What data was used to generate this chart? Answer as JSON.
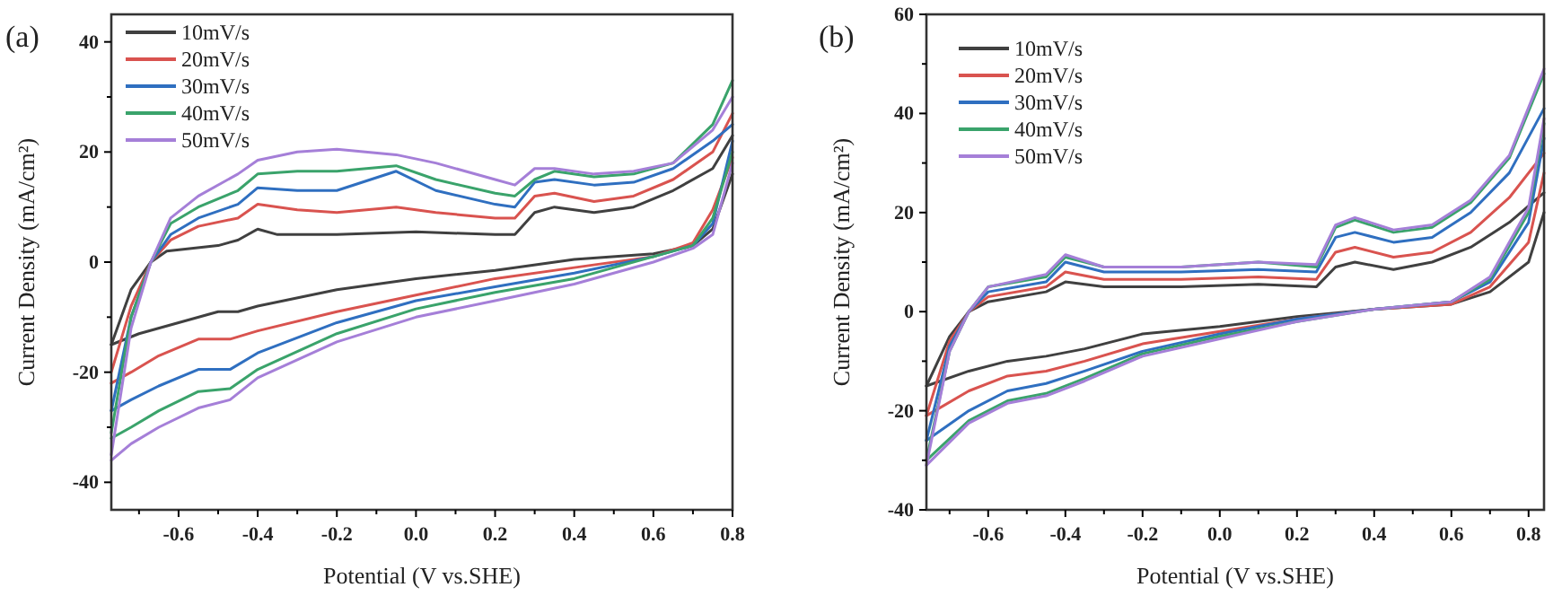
{
  "chart_data": [
    {
      "type": "line",
      "xlabel": "Potential (V vs.SHE)",
      "ylabel": "Current Density (mA/cm²)",
      "annotations": [
        "(a)"
      ],
      "legend": "top left",
      "line_style": "solid",
      "xlim": [
        -0.77,
        0.8
      ],
      "ylim": [
        -45,
        45
      ],
      "xticks": [
        {
          "value": -0.7,
          "label": null
        },
        -0.6,
        {
          "value": -0.5,
          "label": null
        },
        -0.4,
        {
          "value": -0.3,
          "label": null
        },
        -0.2,
        {
          "value": -0.1,
          "label": null
        },
        {
          "value": 0,
          "label": "0.0"
        },
        {
          "value": 0.1,
          "label": null
        },
        0.2,
        {
          "value": 0.3,
          "label": null
        },
        0.4,
        {
          "value": 0.5,
          "label": null
        },
        0.6,
        {
          "value": 0.7,
          "label": null
        },
        0.8
      ],
      "yticks": [
        -40,
        {
          "value": -30,
          "label": null
        },
        -20,
        {
          "value": -10,
          "label": null
        },
        0,
        {
          "value": 10,
          "label": null
        },
        20,
        {
          "value": 30,
          "label": null
        },
        40
      ],
      "series": [
        {
          "name": "10mV/s",
          "color": "#404040",
          "x": [
            -0.77,
            -0.72,
            -0.67,
            -0.63,
            -0.5,
            -0.45,
            -0.4,
            -0.35,
            -0.2,
            0,
            0.2,
            0.25,
            0.3,
            0.35,
            0.45,
            0.55,
            0.65,
            0.75,
            0.8
          ],
          "values": [
            -15,
            -5,
            0,
            2,
            3,
            4,
            6,
            5,
            5,
            5.5,
            5,
            5,
            9,
            10,
            9,
            10,
            13,
            17,
            23
          ]
        },
        {
          "color": "#404040",
          "x": [
            -0.77,
            -0.7,
            -0.6,
            -0.5,
            -0.45,
            -0.4,
            -0.2,
            0,
            0.2,
            0.4,
            0.6,
            0.7,
            0.75,
            0.8
          ],
          "values": [
            -15,
            -13,
            -11,
            -9,
            -9,
            -8,
            -5,
            -3,
            -1.5,
            0.5,
            1.5,
            3,
            6,
            16
          ]
        },
        {
          "name": "20mV/s",
          "color": "#d9534f",
          "x": [
            -0.77,
            -0.72,
            -0.67,
            -0.62,
            -0.55,
            -0.45,
            -0.4,
            -0.3,
            -0.2,
            -0.05,
            0.05,
            0.2,
            0.25,
            0.3,
            0.35,
            0.45,
            0.55,
            0.65,
            0.75,
            0.8
          ],
          "values": [
            -20,
            -8,
            0,
            4,
            6.5,
            8,
            10.5,
            9.5,
            9,
            10,
            9,
            8,
            8,
            12,
            12.5,
            11,
            12,
            15,
            20,
            27
          ]
        },
        {
          "color": "#d9534f",
          "x": [
            -0.77,
            -0.72,
            -0.65,
            -0.55,
            -0.47,
            -0.4,
            -0.2,
            0,
            0.2,
            0.4,
            0.6,
            0.7,
            0.75,
            0.8
          ],
          "values": [
            -22,
            -20,
            -17,
            -14,
            -14,
            -12.5,
            -9,
            -6,
            -3,
            -1,
            1,
            3.5,
            9.5,
            19
          ]
        },
        {
          "name": "30mV/s",
          "color": "#2f6fc0",
          "x": [
            -0.77,
            -0.72,
            -0.67,
            -0.62,
            -0.55,
            -0.45,
            -0.4,
            -0.3,
            -0.2,
            -0.05,
            0.05,
            0.2,
            0.25,
            0.3,
            0.35,
            0.45,
            0.55,
            0.65,
            0.75,
            0.8
          ],
          "values": [
            -27,
            -10,
            0,
            5,
            8,
            10.5,
            13.5,
            13,
            13,
            16.5,
            13,
            10.5,
            10,
            14.5,
            15,
            14,
            14.5,
            17,
            22,
            25
          ]
        },
        {
          "color": "#2f6fc0",
          "x": [
            -0.77,
            -0.72,
            -0.65,
            -0.55,
            -0.47,
            -0.4,
            -0.2,
            0,
            0.2,
            0.4,
            0.6,
            0.7,
            0.75,
            0.8
          ],
          "values": [
            -27,
            -25,
            -22.5,
            -19.5,
            -19.5,
            -16.5,
            -11,
            -7,
            -4.5,
            -2,
            1,
            3,
            7,
            22
          ]
        },
        {
          "name": "40mV/s",
          "color": "#3aa36b",
          "x": [
            -0.77,
            -0.72,
            -0.67,
            -0.62,
            -0.55,
            -0.45,
            -0.4,
            -0.3,
            -0.2,
            -0.05,
            0.05,
            0.2,
            0.25,
            0.3,
            0.35,
            0.45,
            0.55,
            0.65,
            0.75,
            0.8
          ],
          "values": [
            -31,
            -10,
            0,
            7,
            10,
            13,
            16,
            16.5,
            16.5,
            17.5,
            15,
            12.5,
            12,
            15,
            16.5,
            15.5,
            16,
            18,
            25,
            33
          ]
        },
        {
          "color": "#3aa36b",
          "x": [
            -0.77,
            -0.72,
            -0.65,
            -0.55,
            -0.47,
            -0.4,
            -0.2,
            0,
            0.2,
            0.4,
            0.6,
            0.7,
            0.75,
            0.8
          ],
          "values": [
            -32,
            -30,
            -27,
            -23.5,
            -23,
            -19.5,
            -13,
            -8.5,
            -5.5,
            -3,
            1,
            3,
            8,
            20
          ]
        },
        {
          "name": "50mV/s",
          "color": "#a57fd8",
          "x": [
            -0.77,
            -0.72,
            -0.67,
            -0.62,
            -0.55,
            -0.45,
            -0.4,
            -0.3,
            -0.2,
            -0.05,
            0.05,
            0.2,
            0.25,
            0.3,
            0.35,
            0.45,
            0.55,
            0.65,
            0.75,
            0.8
          ],
          "values": [
            -35,
            -12,
            0,
            8,
            12,
            16,
            18.5,
            20,
            20.5,
            19.5,
            18,
            15,
            14,
            17,
            17,
            16,
            16.5,
            18,
            24,
            30
          ]
        },
        {
          "color": "#a57fd8",
          "x": [
            -0.77,
            -0.72,
            -0.65,
            -0.55,
            -0.47,
            -0.4,
            -0.2,
            0,
            0.2,
            0.4,
            0.6,
            0.7,
            0.75,
            0.8
          ],
          "values": [
            -36,
            -33,
            -30,
            -26.5,
            -25,
            -21,
            -14.5,
            -10,
            -7,
            -4,
            0,
            2.5,
            5,
            18
          ]
        }
      ]
    },
    {
      "type": "line",
      "xlabel": "Potential (V vs.SHE)",
      "ylabel": "Current Density (mA/cm²)",
      "annotations": [
        "(b)"
      ],
      "legend": "top left",
      "line_style": "solid",
      "xlim": [
        -0.76,
        0.84
      ],
      "ylim": [
        -40,
        60
      ],
      "xticks": [
        {
          "value": -0.7,
          "label": null
        },
        -0.6,
        {
          "value": -0.5,
          "label": null
        },
        -0.4,
        {
          "value": -0.3,
          "label": null
        },
        -0.2,
        {
          "value": -0.1,
          "label": null
        },
        {
          "value": 0,
          "label": "0.0"
        },
        {
          "value": 0.1,
          "label": null
        },
        0.2,
        {
          "value": 0.3,
          "label": null
        },
        0.4,
        {
          "value": 0.5,
          "label": null
        },
        0.6,
        {
          "value": 0.7,
          "label": null
        },
        0.8
      ],
      "yticks": [
        -40,
        {
          "value": -30,
          "label": null
        },
        -20,
        {
          "value": -10,
          "label": null
        },
        0,
        {
          "value": 10,
          "label": null
        },
        20,
        {
          "value": 30,
          "label": null
        },
        40,
        {
          "value": 50,
          "label": null
        },
        60
      ],
      "series": [
        {
          "name": "10mV/s",
          "color": "#404040",
          "x": [
            -0.76,
            -0.7,
            -0.65,
            -0.6,
            -0.45,
            -0.4,
            -0.3,
            -0.1,
            0.1,
            0.25,
            0.3,
            0.35,
            0.45,
            0.55,
            0.65,
            0.75,
            0.84
          ],
          "values": [
            -15,
            -5,
            0,
            2,
            4,
            6,
            5,
            5,
            5.5,
            5,
            9,
            10,
            8.5,
            10,
            13,
            18,
            24
          ]
        },
        {
          "color": "#404040",
          "x": [
            -0.76,
            -0.65,
            -0.55,
            -0.45,
            -0.35,
            -0.2,
            0,
            0.2,
            0.4,
            0.6,
            0.7,
            0.8,
            0.84
          ],
          "values": [
            -15,
            -12,
            -10,
            -9,
            -7.5,
            -4.5,
            -3,
            -1,
            0.5,
            1.5,
            4,
            10,
            20
          ]
        },
        {
          "name": "20mV/s",
          "color": "#d9534f",
          "x": [
            -0.76,
            -0.7,
            -0.65,
            -0.6,
            -0.45,
            -0.4,
            -0.3,
            -0.1,
            0.1,
            0.25,
            0.3,
            0.35,
            0.45,
            0.55,
            0.65,
            0.75,
            0.84
          ],
          "values": [
            -21,
            -6,
            0,
            3,
            5,
            8,
            6.5,
            6.5,
            7,
            6.5,
            12,
            13,
            11,
            12,
            16,
            23,
            32
          ]
        },
        {
          "color": "#d9534f",
          "x": [
            -0.76,
            -0.65,
            -0.55,
            -0.45,
            -0.35,
            -0.2,
            0,
            0.2,
            0.4,
            0.6,
            0.7,
            0.8,
            0.84
          ],
          "values": [
            -21,
            -16,
            -13,
            -12,
            -10,
            -6.5,
            -4,
            -1.5,
            0.5,
            1.5,
            5,
            14,
            28
          ]
        },
        {
          "name": "30mV/s",
          "color": "#2f6fc0",
          "x": [
            -0.76,
            -0.7,
            -0.65,
            -0.6,
            -0.45,
            -0.4,
            -0.3,
            -0.1,
            0.1,
            0.25,
            0.3,
            0.35,
            0.45,
            0.55,
            0.65,
            0.75,
            0.84
          ],
          "values": [
            -26,
            -7,
            0,
            4,
            6,
            10,
            8,
            8,
            8.5,
            8,
            15,
            16,
            14,
            15,
            20,
            28,
            41
          ]
        },
        {
          "color": "#2f6fc0",
          "x": [
            -0.76,
            -0.65,
            -0.55,
            -0.45,
            -0.35,
            -0.2,
            0,
            0.2,
            0.4,
            0.6,
            0.7,
            0.8,
            0.84
          ],
          "values": [
            -26,
            -20,
            -16,
            -14.5,
            -12,
            -8,
            -4.5,
            -1.5,
            0.5,
            2,
            6,
            18,
            35
          ]
        },
        {
          "name": "40mV/s",
          "color": "#3aa36b",
          "x": [
            -0.76,
            -0.7,
            -0.65,
            -0.6,
            -0.45,
            -0.4,
            -0.3,
            -0.1,
            0.1,
            0.25,
            0.3,
            0.35,
            0.45,
            0.55,
            0.65,
            0.75,
            0.84
          ],
          "values": [
            -30,
            -8,
            0,
            5,
            7,
            11,
            9,
            9,
            10,
            9,
            17,
            18.5,
            16,
            17,
            22,
            31,
            48
          ]
        },
        {
          "color": "#3aa36b",
          "x": [
            -0.76,
            -0.65,
            -0.55,
            -0.45,
            -0.35,
            -0.2,
            0,
            0.2,
            0.4,
            0.6,
            0.7,
            0.8,
            0.84
          ],
          "values": [
            -30,
            -22,
            -18,
            -16.5,
            -13.5,
            -8.5,
            -5,
            -2,
            0.5,
            2,
            6.5,
            20,
            38
          ]
        },
        {
          "name": "50mV/s",
          "color": "#a57fd8",
          "x": [
            -0.76,
            -0.7,
            -0.65,
            -0.6,
            -0.45,
            -0.4,
            -0.3,
            -0.1,
            0.1,
            0.25,
            0.3,
            0.35,
            0.45,
            0.55,
            0.65,
            0.75,
            0.84
          ],
          "values": [
            -31,
            -8,
            0,
            5,
            7.5,
            11.5,
            9,
            9,
            10,
            9.5,
            17.5,
            19,
            16.5,
            17.5,
            22.5,
            31.5,
            49
          ]
        },
        {
          "color": "#a57fd8",
          "x": [
            -0.76,
            -0.65,
            -0.55,
            -0.45,
            -0.35,
            -0.2,
            0,
            0.2,
            0.4,
            0.6,
            0.7,
            0.8,
            0.84
          ],
          "values": [
            -31,
            -22.5,
            -18.5,
            -17,
            -14,
            -9,
            -5.5,
            -2,
            0.5,
            2,
            7,
            21,
            39
          ]
        }
      ]
    }
  ]
}
